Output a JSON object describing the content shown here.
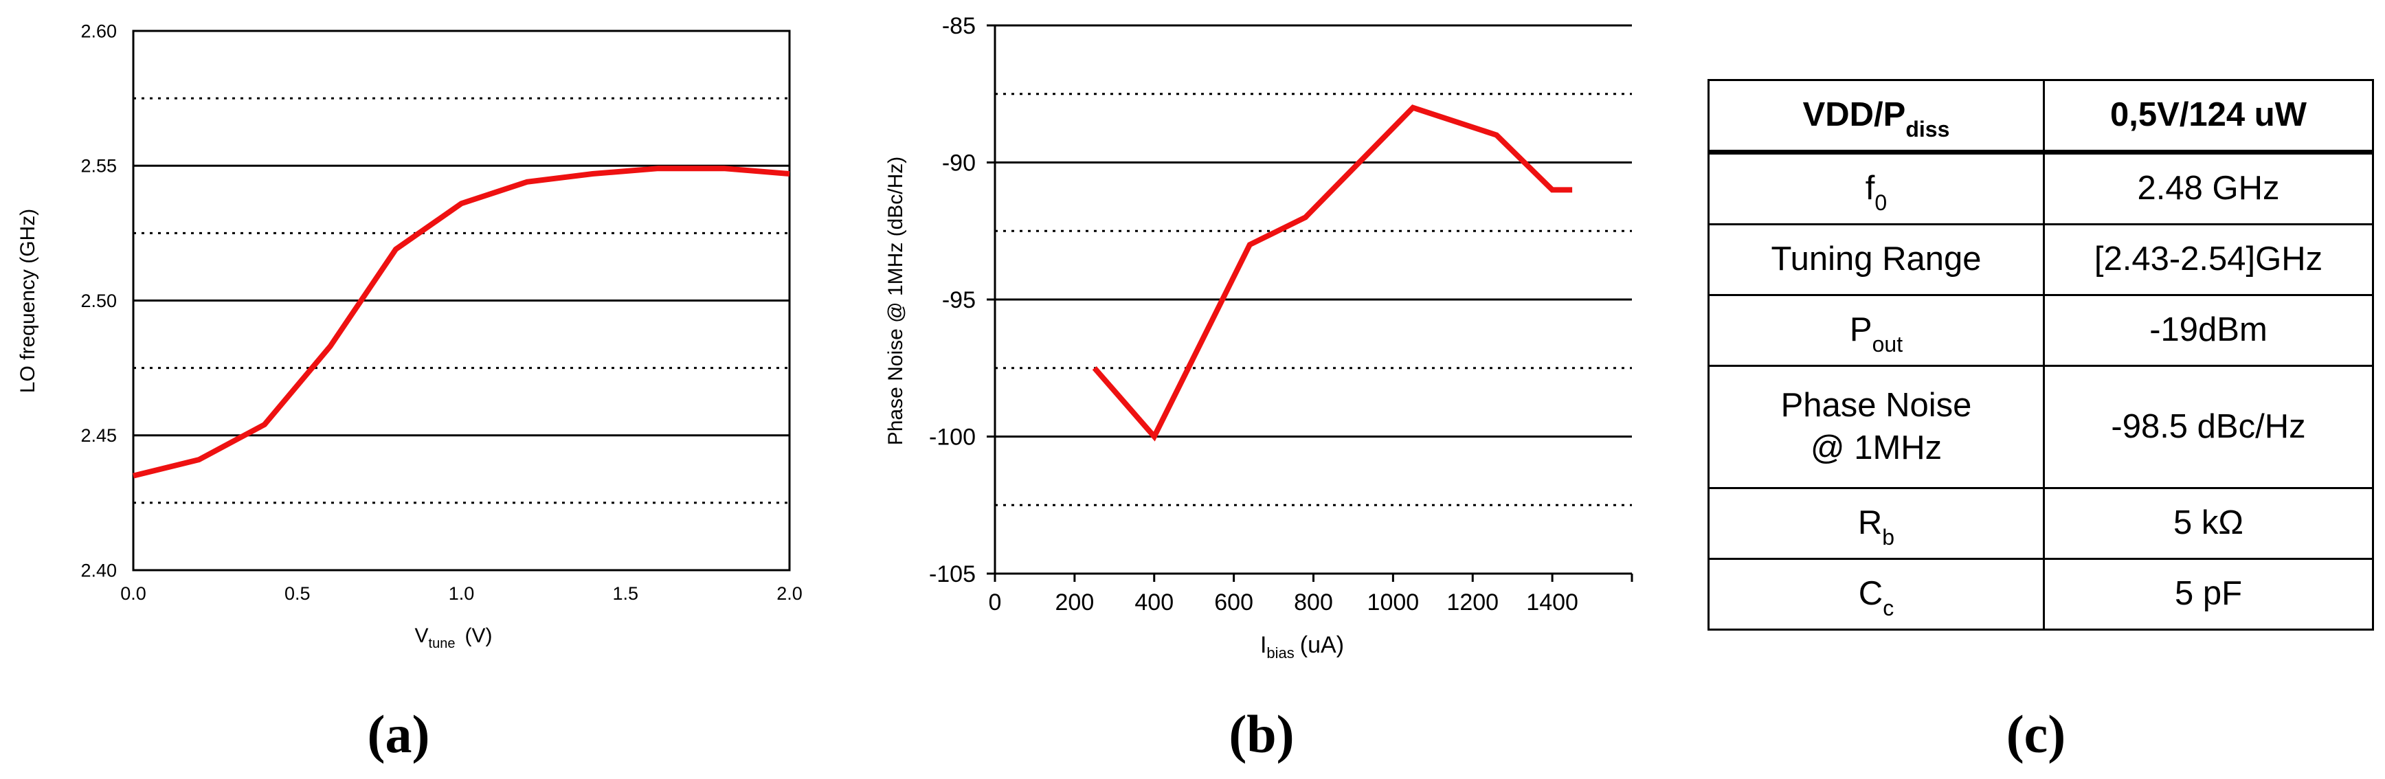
{
  "chart_data": [
    {
      "type": "line",
      "panel_label": "(a)",
      "xlabel": "V",
      "xlabel_sub": "tune",
      "xlabel_unit": "(V)",
      "ylabel": "LO frequency (GHz)",
      "xlim": [
        0,
        2
      ],
      "ylim": [
        2.4,
        2.6
      ],
      "xticks": [
        "0.0",
        "0.5",
        "1.0",
        "1.5",
        "2.0"
      ],
      "yticks": [
        "2.40",
        "2.45",
        "2.50",
        "2.55",
        "2.60"
      ],
      "grid": "horizontal: solid at labeled ticks, dotted at midpoints",
      "series": [
        {
          "color": "#ee1111",
          "x": [
            0,
            0.2,
            0.4,
            0.6,
            0.8,
            1.0,
            1.2,
            1.4,
            1.6,
            1.8,
            2.0
          ],
          "y": [
            2.435,
            2.441,
            2.454,
            2.483,
            2.519,
            2.536,
            2.544,
            2.547,
            2.549,
            2.549,
            2.547
          ]
        }
      ]
    },
    {
      "type": "line",
      "panel_label": "(b)",
      "xlabel": "I",
      "xlabel_sub": "bias",
      "xlabel_unit": "(uA)",
      "ylabel": "Phase Noise @ 1MHz (dBc/Hz)",
      "xlim": [
        0,
        1600
      ],
      "ylim": [
        -105,
        -85
      ],
      "xticks": [
        "0",
        "200",
        "400",
        "600",
        "800",
        "1000",
        "1200",
        "1400"
      ],
      "yticks": [
        "-105",
        "-100",
        "-95",
        "-90",
        "-85"
      ],
      "grid": "horizontal: solid at labeled ticks, dotted at midpoints",
      "series": [
        {
          "color": "#ee1111",
          "x": [
            250,
            400,
            640,
            780,
            1050,
            1260,
            1400,
            1450
          ],
          "y": [
            -97.5,
            -100,
            -93,
            -92,
            -88,
            -89,
            -91,
            -91
          ]
        }
      ]
    }
  ],
  "table": {
    "panel_label": "(c)",
    "header": {
      "label_main": "VDD/P",
      "label_sub": "diss",
      "value": "0,5V/124 uW"
    },
    "rows": [
      {
        "main": "f",
        "sub": "0",
        "value": "2.48 GHz"
      },
      {
        "main": "Tuning Range",
        "sub": "",
        "value": "[2.43-2.54]GHz"
      },
      {
        "main": "P",
        "sub": "out",
        "value": "-19dBm"
      },
      {
        "line1": "Phase Noise",
        "line2": "@ 1MHz",
        "value": "-98.5 dBc/Hz"
      },
      {
        "main": "R",
        "sub": "b",
        "value": "5 kΩ"
      },
      {
        "main": "C",
        "sub": "c",
        "value": "5 pF"
      }
    ]
  }
}
